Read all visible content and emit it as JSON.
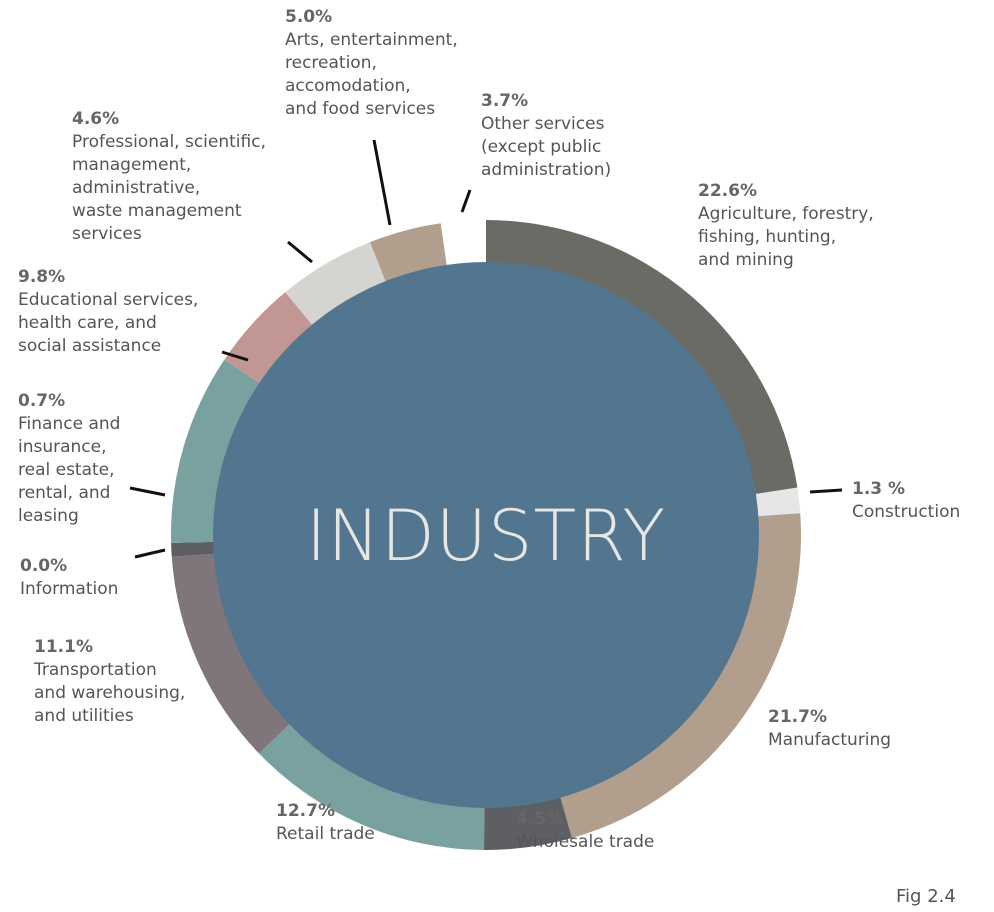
{
  "chart_data": {
    "type": "pie",
    "title": "INDUSTRY",
    "note": "Fig 2.4",
    "categories": [
      "Agriculture, forestry,\nfishing, hunting,\nand mining",
      "Construction",
      "Manufacturing",
      "Wholesale trade",
      "Retail trade",
      "Transportation\nand warehousing,\nand utilities",
      "Information",
      "Finance and\ninsurance,\nreal estate,\nrental, and\nleasing",
      "Educational services,\nhealth care, and\nsocial assistance",
      "Professional, scientific,\nmanagement,\nadministrative,\nwaste management\nservices",
      "Arts, entertainment,\nrecreation,\naccomodation,\nand food services",
      "Other services\n(except public\nadministration)"
    ],
    "values": [
      22.6,
      1.3,
      21.7,
      4.5,
      12.7,
      11.1,
      0.0,
      0.7,
      9.8,
      4.6,
      5.0,
      3.7
    ],
    "value_labels": [
      "22.6%",
      "1.3 %",
      "21.7%",
      "4.5%",
      "12.7%",
      "11.1%",
      "0.0%",
      "0.7%",
      "9.8%",
      "4.6%",
      "5.0%",
      "3.7%"
    ],
    "colors": [
      "#6b6b66",
      "#e6e6e6",
      "#b19e8c",
      "#5e5f62",
      "#79a19f",
      "#7f767b",
      "#a8b294",
      "#5e5f62",
      "#79a19f",
      "#c29693",
      "#d5d4d1",
      "#b19e8c"
    ],
    "center_color": "#527590"
  }
}
